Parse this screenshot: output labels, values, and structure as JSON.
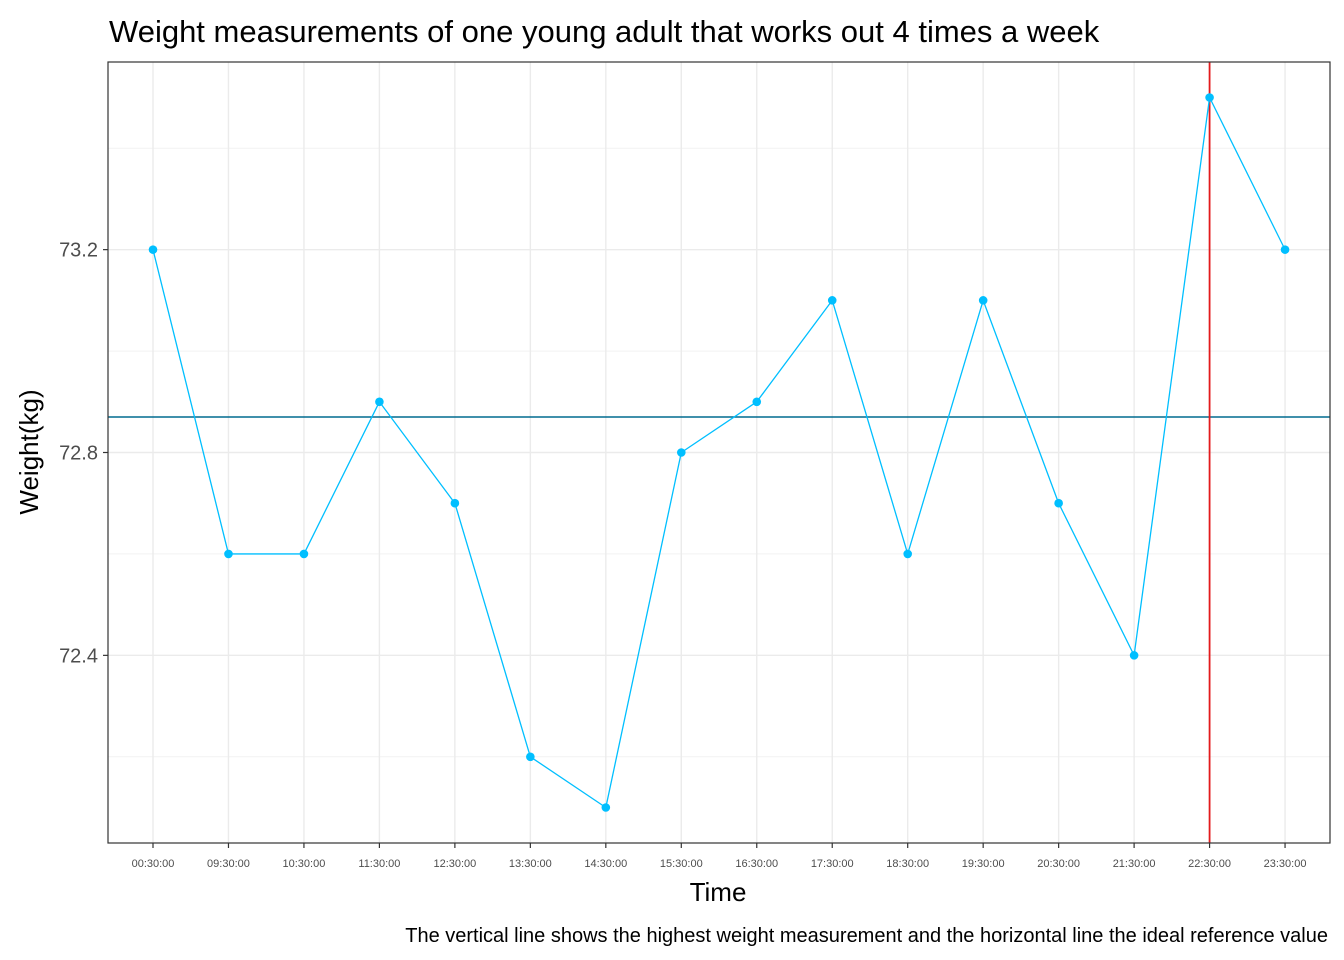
{
  "chart_data": {
    "type": "line",
    "title": "Weight measurements of one young adult that works out 4 times a week",
    "xlabel": "Time",
    "ylabel": "Weight(kg)",
    "caption": "The vertical line shows the highest weight measurement and the horizontal line the ideal reference value",
    "categories": [
      "00:30:00",
      "09:30:00",
      "10:30:00",
      "11:30:00",
      "12:30:00",
      "13:30:00",
      "14:30:00",
      "15:30:00",
      "16:30:00",
      "17:30:00",
      "18:30:00",
      "19:30:00",
      "20:30:00",
      "21:30:00",
      "22:30:00",
      "23:30:00"
    ],
    "series": [
      {
        "values": [
          73.2,
          72.6,
          72.6,
          72.9,
          72.7,
          72.2,
          72.1,
          72.8,
          72.9,
          73.1,
          72.6,
          73.1,
          72.7,
          72.4,
          73.5,
          73.2
        ],
        "color": "#00bfff"
      }
    ],
    "yticks": [
      72.4,
      72.8,
      73.2
    ],
    "ylim": [
      72.03,
      73.57
    ],
    "hline": {
      "value": 72.87,
      "color": "#006b8f"
    },
    "vline": {
      "category": "22:30:00",
      "color": "#e31a1c"
    },
    "grid": true,
    "panel_border": true
  }
}
